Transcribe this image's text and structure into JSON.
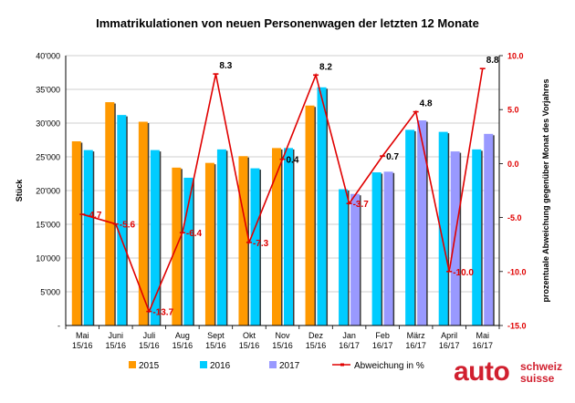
{
  "chart_data": {
    "type": "bar",
    "title": "Immatrikulationen von neuen Personenwagen der letzten 12 Monate",
    "ylabel": "Stück",
    "y2label": "prozentuale Abweichung gegenüber Monat des Vorjahres",
    "ylim": [
      0,
      40000
    ],
    "y2lim": [
      -15,
      10
    ],
    "y_ticks": [
      "-",
      "5'000",
      "10'000",
      "15'000",
      "20'000",
      "25'000",
      "30'000",
      "35'000",
      "40'000"
    ],
    "y2_ticks": [
      "-15.0",
      "-10.0",
      "-5.0",
      "0.0",
      "5.0",
      "10.0"
    ],
    "categories": [
      [
        "Mai",
        "15/16"
      ],
      [
        "Juni",
        "15/16"
      ],
      [
        "Juli",
        "15/16"
      ],
      [
        "Aug",
        "15/16"
      ],
      [
        "Sept",
        "15/16"
      ],
      [
        "Okt",
        "15/16"
      ],
      [
        "Nov",
        "15/16"
      ],
      [
        "Dez",
        "15/16"
      ],
      [
        "Jan",
        "16/17"
      ],
      [
        "Feb",
        "16/17"
      ],
      [
        "März",
        "16/17"
      ],
      [
        "April",
        "16/17"
      ],
      [
        "Mai",
        "16/17"
      ]
    ],
    "series": [
      {
        "name": "2015",
        "color": "#ff9900",
        "values": [
          27300,
          33100,
          30200,
          23400,
          24100,
          25100,
          26300,
          32600,
          null,
          null,
          null,
          null,
          null
        ]
      },
      {
        "name": "2016",
        "color": "#00ccff",
        "values": [
          26000,
          31200,
          26000,
          21900,
          26100,
          23300,
          26300,
          35300,
          20200,
          22700,
          29000,
          28700,
          26100
        ]
      },
      {
        "name": "2017",
        "color": "#9999ff",
        "values": [
          null,
          null,
          null,
          null,
          null,
          null,
          null,
          null,
          19500,
          22800,
          30400,
          25800,
          28400
        ]
      }
    ],
    "line": {
      "name": "Abweichung in %",
      "color": "#e00000",
      "values": [
        -4.7,
        -5.6,
        -13.7,
        -6.4,
        8.3,
        -7.3,
        0.4,
        8.2,
        -3.7,
        0.7,
        4.8,
        -10.0,
        8.8
      ],
      "labels": [
        "-4.7",
        "-5.6",
        "-13.7",
        "-6.4",
        "8.3",
        "-7.3",
        "0.4",
        "8.2",
        "-3.7",
        "0.7",
        "4.8",
        "-10.0",
        "8.8"
      ],
      "label_colors": [
        "#e00000",
        "#e00000",
        "#e00000",
        "#e00000",
        "#000000",
        "#e00000",
        "#000000",
        "#000000",
        "#e00000",
        "#000000",
        "#000000",
        "#e00000",
        "#000000"
      ]
    },
    "legend": {
      "placement": "bottom",
      "entries": [
        {
          "name": "2015",
          "color": "#ff9900",
          "kind": "bar"
        },
        {
          "name": "2016",
          "color": "#00ccff",
          "kind": "bar"
        },
        {
          "name": "2017",
          "color": "#9999ff",
          "kind": "bar"
        },
        {
          "name": "Abweichung in %",
          "color": "#e00000",
          "kind": "line"
        }
      ]
    },
    "grid": true
  },
  "logo": {
    "main": "auto",
    "line1": "schweiz",
    "line2": "suisse"
  }
}
